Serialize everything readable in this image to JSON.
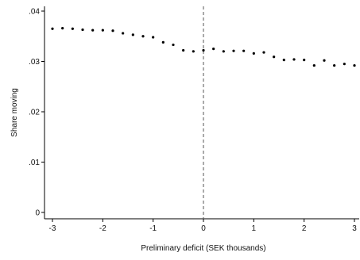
{
  "chart_data": {
    "type": "scatter",
    "title": "",
    "xlabel": "Preliminary deficit (SEK thousands)",
    "ylabel": "Share moving",
    "xlim": [
      -3,
      3
    ],
    "ylim": [
      0,
      0.04
    ],
    "x_ticks": [
      "-3",
      "-2",
      "-1",
      "0",
      "1",
      "2",
      "3"
    ],
    "y_ticks": [
      "0",
      ".01",
      ".02",
      ".03",
      ".04"
    ],
    "grid": false,
    "legend": "none",
    "reference_line": {
      "x": 0,
      "style": "dashed"
    },
    "marker_color": "#000000",
    "series": [
      {
        "points": [
          {
            "x": -3.0,
            "y": 0.0365
          },
          {
            "x": -2.8,
            "y": 0.0366
          },
          {
            "x": -2.6,
            "y": 0.0365
          },
          {
            "x": -2.4,
            "y": 0.0363
          },
          {
            "x": -2.2,
            "y": 0.0362
          },
          {
            "x": -2.0,
            "y": 0.0362
          },
          {
            "x": -1.8,
            "y": 0.0361
          },
          {
            "x": -1.6,
            "y": 0.0356
          },
          {
            "x": -1.4,
            "y": 0.0353
          },
          {
            "x": -1.2,
            "y": 0.035
          },
          {
            "x": -1.0,
            "y": 0.0348
          },
          {
            "x": -0.8,
            "y": 0.0338
          },
          {
            "x": -0.6,
            "y": 0.0333
          },
          {
            "x": -0.4,
            "y": 0.0322
          },
          {
            "x": -0.2,
            "y": 0.032
          },
          {
            "x": 0.0,
            "y": 0.0322
          },
          {
            "x": 0.2,
            "y": 0.0325
          },
          {
            "x": 0.4,
            "y": 0.032
          },
          {
            "x": 0.6,
            "y": 0.0321
          },
          {
            "x": 0.8,
            "y": 0.0321
          },
          {
            "x": 1.0,
            "y": 0.0316
          },
          {
            "x": 1.2,
            "y": 0.0318
          },
          {
            "x": 1.4,
            "y": 0.0309
          },
          {
            "x": 1.6,
            "y": 0.0303
          },
          {
            "x": 1.8,
            "y": 0.0304
          },
          {
            "x": 2.0,
            "y": 0.0303
          },
          {
            "x": 2.2,
            "y": 0.0292
          },
          {
            "x": 2.4,
            "y": 0.0302
          },
          {
            "x": 2.6,
            "y": 0.0292
          },
          {
            "x": 2.8,
            "y": 0.0295
          },
          {
            "x": 3.0,
            "y": 0.0292
          }
        ]
      }
    ]
  }
}
